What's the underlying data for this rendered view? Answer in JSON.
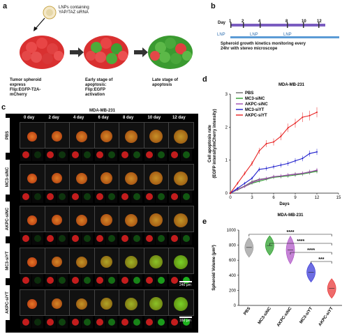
{
  "panels": {
    "a": {
      "label": "a",
      "lnp_text": "LNPs containing\nYAP/TAZ siRNA",
      "stage1": "Tumor spheroid\nexpress\nFlip:EGFP-T2A-\nmCherry",
      "stage2": "Early stage of\napoptosis:\nFlip:EGFP\nactivation",
      "stage3": "Late stage of\napoptosis"
    },
    "b": {
      "label": "b",
      "day_label": "Day",
      "days": [
        "1",
        "2",
        "4",
        "8",
        "10",
        "12"
      ],
      "lnp": "LNP",
      "monitor_text": "Spheroid growth kinetics monitoring every\n24hr with stereo microscope"
    },
    "c": {
      "label": "c",
      "title": "MDA-MB-231",
      "days": [
        "0 day",
        "2 day",
        "4 day",
        "6 day",
        "8 day",
        "10 day",
        "12 day"
      ],
      "groups": [
        "PBS",
        "MC3-siNC",
        "AKPC-siNC",
        "MC3-siYT",
        "AKPC-siYT"
      ],
      "scale1": "240 μm",
      "scale2": "160 μm"
    },
    "d": {
      "label": "d"
    },
    "e": {
      "label": "e"
    }
  },
  "chart_data": [
    {
      "type": "line",
      "title": "MDA-MB-231",
      "xlabel": "Days",
      "ylabel": "Cell apoptosis rate\n(EGFP intensity/mCherry intensity)",
      "xlim": [
        0,
        15
      ],
      "ylim": [
        0,
        3
      ],
      "xticks": [
        0,
        3,
        6,
        9,
        12,
        15
      ],
      "yticks": [
        0,
        1,
        2,
        3
      ],
      "x": [
        0,
        1,
        2,
        3,
        4,
        5,
        6,
        7,
        8,
        9,
        10,
        11,
        12
      ],
      "series": [
        {
          "name": "PBS",
          "color": "#6b6b6b",
          "values": [
            0,
            0.12,
            0.22,
            0.35,
            0.42,
            0.45,
            0.5,
            0.52,
            0.55,
            0.58,
            0.6,
            0.65,
            0.68
          ]
        },
        {
          "name": "MC3-siNC",
          "color": "#2e9e2e",
          "values": [
            0,
            0.1,
            0.2,
            0.3,
            0.36,
            0.42,
            0.48,
            0.5,
            0.52,
            0.55,
            0.58,
            0.62,
            0.66
          ]
        },
        {
          "name": "AKPC-siNC",
          "color": "#a04ab0",
          "values": [
            0,
            0.11,
            0.2,
            0.32,
            0.4,
            0.44,
            0.5,
            0.52,
            0.55,
            0.57,
            0.6,
            0.64,
            0.7
          ]
        },
        {
          "name": "MC3-siYT",
          "color": "#1c1ccc",
          "values": [
            0,
            0.15,
            0.3,
            0.45,
            0.72,
            0.75,
            0.8,
            0.85,
            0.9,
            0.98,
            1.05,
            1.2,
            1.25
          ]
        },
        {
          "name": "AKPC-siYT",
          "color": "#e82020",
          "values": [
            0,
            0.3,
            0.6,
            0.9,
            1.28,
            1.5,
            1.55,
            1.72,
            1.98,
            2.12,
            2.3,
            2.35,
            2.45
          ]
        }
      ]
    },
    {
      "type": "violin",
      "title": "MDA-MB-231",
      "ylabel": "Spheroid Volume (μm³)",
      "ylim": [
        0,
        1000
      ],
      "yticks": [
        0,
        200,
        400,
        600,
        800,
        1000
      ],
      "categories": [
        "PBS",
        "MC3-siNC",
        "AKPC-siNC",
        "MC3-siYT",
        "AKPC-siYT"
      ],
      "values": [
        770,
        795,
        735,
        440,
        225
      ],
      "colors": [
        "#9e9e9e",
        "#2ea02e",
        "#b25ac8",
        "#3c3cd8",
        "#e83a3a"
      ],
      "significance": [
        "****",
        "****",
        "****",
        "***"
      ]
    }
  ]
}
